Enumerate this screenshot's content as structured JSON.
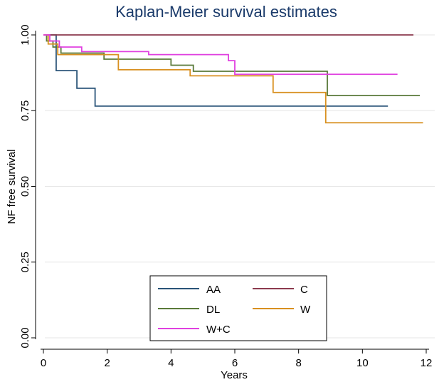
{
  "chart_data": {
    "type": "line",
    "subtype": "step",
    "title": "Kaplan-Meier survival estimates",
    "xlabel": "Years",
    "ylabel": "NF free survival",
    "xlim": [
      0,
      12
    ],
    "ylim": [
      0,
      1
    ],
    "xticks": [
      0,
      2,
      4,
      6,
      8,
      10,
      12
    ],
    "yticks": [
      0,
      0.25,
      0.5,
      0.75,
      1
    ],
    "ytick_labels": [
      "0.00",
      "0.25",
      "0.50",
      "0.75",
      "1.00"
    ],
    "grid": true,
    "legend_position": "bottom-left",
    "series": [
      {
        "name": "AA",
        "color": "#2a5478",
        "x": [
          0,
          0.4,
          1.05,
          1.62,
          10.8
        ],
        "y": [
          1.0,
          0.882,
          0.824,
          0.765,
          0.765
        ]
      },
      {
        "name": "C",
        "color": "#8c3a4e",
        "x": [
          0,
          11.6
        ],
        "y": [
          1.0,
          1.0
        ]
      },
      {
        "name": "DL",
        "color": "#5a7a3a",
        "x": [
          0,
          0.1,
          0.3,
          0.55,
          1.9,
          3.1,
          4.0,
          4.7,
          8.9,
          11.8
        ],
        "y": [
          1.0,
          0.98,
          0.96,
          0.94,
          0.92,
          0.92,
          0.9,
          0.88,
          0.8,
          0.8
        ]
      },
      {
        "name": "W",
        "color": "#d89020",
        "x": [
          0,
          0.15,
          0.45,
          2.35,
          4.6,
          7.2,
          8.85,
          11.9
        ],
        "y": [
          1.0,
          0.97,
          0.935,
          0.885,
          0.865,
          0.81,
          0.71,
          0.71
        ]
      },
      {
        "name": "W+C",
        "color": "#e040e0",
        "x": [
          0,
          0.2,
          0.5,
          1.2,
          3.3,
          5.8,
          6.0,
          11.1
        ],
        "y": [
          1.0,
          0.98,
          0.96,
          0.945,
          0.935,
          0.915,
          0.87,
          0.87
        ]
      }
    ]
  }
}
